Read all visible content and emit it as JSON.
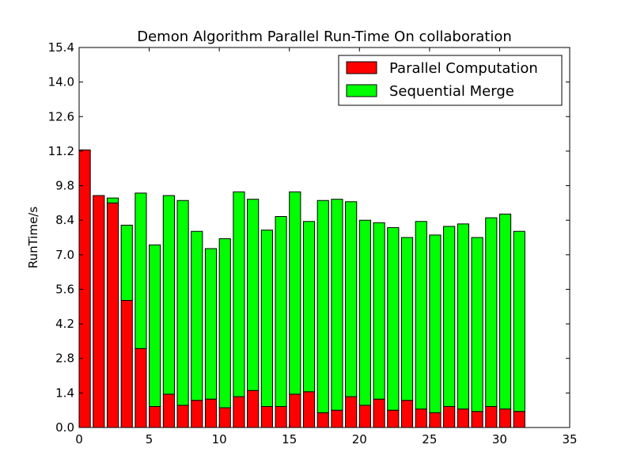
{
  "chart_data": {
    "type": "bar",
    "stacked": true,
    "title": "Demon Algorithm Parallel Run-Time On collaboration",
    "xlabel": "",
    "ylabel": "RunTime/s",
    "xlim": [
      0,
      35
    ],
    "ylim": [
      0,
      15.4
    ],
    "xticks": [
      "0",
      "5",
      "10",
      "15",
      "20",
      "25",
      "30",
      "35"
    ],
    "yticks": [
      "0.0",
      "1.4",
      "2.8",
      "4.2",
      "5.6",
      "7.0",
      "8.4",
      "9.8",
      "11.2",
      "12.6",
      "14.0",
      "15.4"
    ],
    "grid": false,
    "legend_position": "top-right",
    "x": [
      0,
      1,
      2,
      3,
      4,
      5,
      6,
      7,
      8,
      9,
      10,
      11,
      12,
      13,
      14,
      15,
      16,
      17,
      18,
      19,
      20,
      21,
      22,
      23,
      24,
      25,
      26,
      27,
      28,
      29,
      30,
      31
    ],
    "series": [
      {
        "name": "Parallel Computation",
        "color": "#ff0000",
        "values": [
          11.25,
          9.4,
          9.1,
          5.15,
          3.2,
          0.85,
          1.35,
          0.9,
          1.1,
          1.15,
          0.8,
          1.25,
          1.5,
          0.85,
          0.85,
          1.35,
          1.45,
          0.6,
          0.7,
          1.25,
          0.9,
          1.15,
          0.7,
          1.1,
          0.75,
          0.6,
          0.85,
          0.75,
          0.65,
          0.85,
          0.75,
          0.65
        ]
      },
      {
        "name": "Sequential Merge",
        "color": "#00ff00",
        "values": [
          0.0,
          0.0,
          0.2,
          3.05,
          6.3,
          6.55,
          8.05,
          8.3,
          6.85,
          6.1,
          6.85,
          8.3,
          7.75,
          7.15,
          7.7,
          8.2,
          6.9,
          8.6,
          8.55,
          7.9,
          7.5,
          7.15,
          7.4,
          6.6,
          7.6,
          7.2,
          7.3,
          7.5,
          7.05,
          7.65,
          7.9,
          7.3
        ]
      }
    ]
  }
}
